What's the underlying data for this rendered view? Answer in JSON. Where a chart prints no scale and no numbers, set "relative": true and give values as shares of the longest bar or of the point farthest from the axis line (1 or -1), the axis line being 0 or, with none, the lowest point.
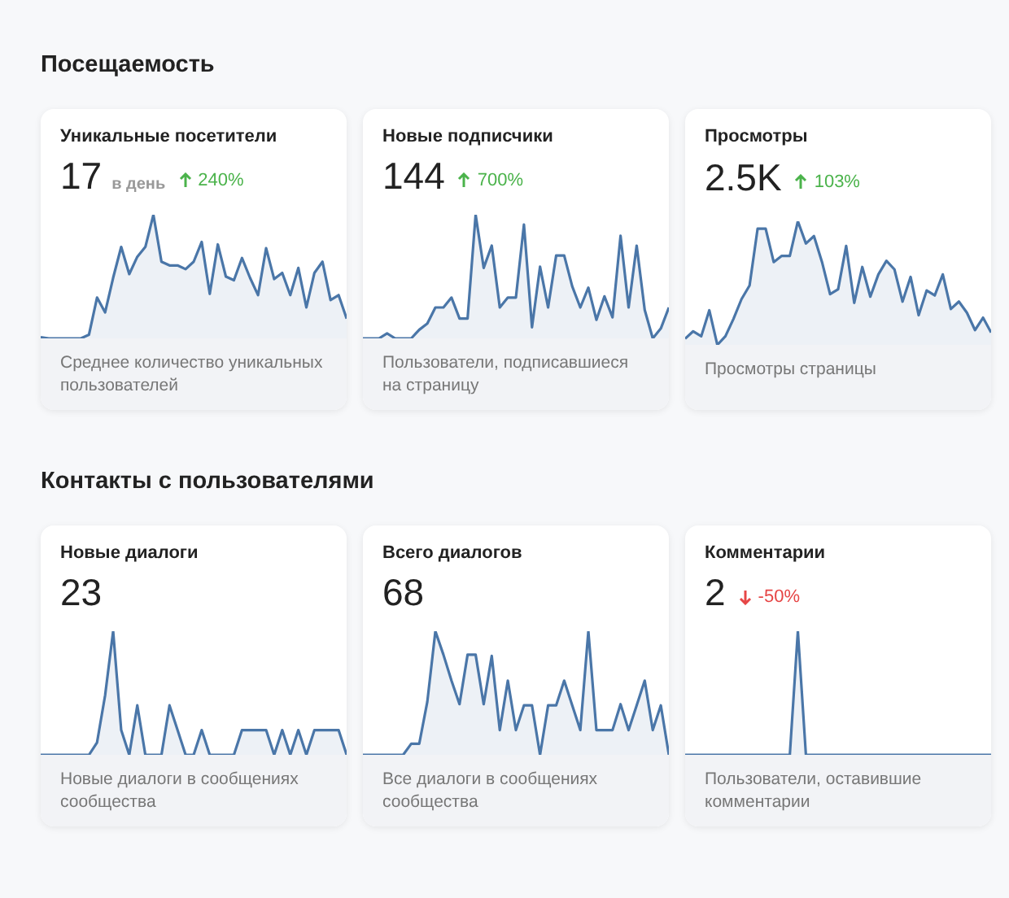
{
  "chart_data": [
    {
      "type": "other",
      "title": "Посещаемость"
    },
    {
      "type": "area",
      "title": "Уникальные посетители",
      "subtitle": "Среднее количество уникальных пользователей",
      "annotations": [
        "17",
        "в день",
        "240%"
      ],
      "relative": true,
      "categories": [
        null,
        null,
        null,
        null,
        null,
        null,
        null,
        null,
        null,
        null,
        null,
        null,
        null,
        null,
        null,
        null,
        null,
        null,
        null,
        null,
        null,
        null,
        null,
        null,
        null,
        null,
        null,
        null,
        null,
        null,
        null,
        null,
        null,
        null,
        null,
        null,
        null,
        null,
        null
      ],
      "series": [
        {
          "color": "#4a76a8",
          "values": [
            0.01,
            0,
            0,
            0,
            0,
            0,
            0.03,
            0.33,
            0.21,
            0.49,
            0.74,
            0.52,
            0.66,
            0.74,
            1,
            0.62,
            0.59,
            0.59,
            0.56,
            0.62,
            0.78,
            0.36,
            0.76,
            0.5,
            0.47,
            0.65,
            0.49,
            0.35,
            0.73,
            0.48,
            0.53,
            0.35,
            0.57,
            0.25,
            0.53,
            0.62,
            0.31,
            0.35,
            0.16
          ]
        }
      ]
    },
    {
      "type": "area",
      "title": "Новые подписчики",
      "subtitle": "Пользователи, подписавшиеся на страницу",
      "annotations": [
        "144",
        "700%"
      ],
      "relative": true,
      "categories": [
        null,
        null,
        null,
        null,
        null,
        null,
        null,
        null,
        null,
        null,
        null,
        null,
        null,
        null,
        null,
        null,
        null,
        null,
        null,
        null,
        null,
        null,
        null,
        null,
        null,
        null,
        null,
        null,
        null,
        null,
        null,
        null,
        null,
        null,
        null,
        null,
        null,
        null,
        null
      ],
      "series": [
        {
          "color": "#4a76a8",
          "values": [
            0,
            0,
            0,
            0.04,
            0,
            0,
            0,
            0.07,
            0.12,
            0.25,
            0.25,
            0.33,
            0.16,
            0.16,
            1,
            0.57,
            0.75,
            0.25,
            0.33,
            0.33,
            0.92,
            0.09,
            0.58,
            0.25,
            0.67,
            0.67,
            0.42,
            0.25,
            0.41,
            0.15,
            0.34,
            0.17,
            0.83,
            0.25,
            0.75,
            0.23,
            0,
            0.08,
            0.25
          ]
        }
      ]
    },
    {
      "type": "area",
      "title": "Просмотры",
      "subtitle": "Просмотры страницы",
      "annotations": [
        "2.5K",
        "103%"
      ],
      "relative": true,
      "categories": [
        null,
        null,
        null,
        null,
        null,
        null,
        null,
        null,
        null,
        null,
        null,
        null,
        null,
        null,
        null,
        null,
        null,
        null,
        null,
        null,
        null,
        null,
        null,
        null,
        null,
        null,
        null,
        null,
        null,
        null,
        null,
        null,
        null,
        null,
        null,
        null,
        null,
        null,
        null
      ],
      "series": [
        {
          "color": "#4a76a8",
          "values": [
            0.05,
            0.11,
            0.07,
            0.28,
            0,
            0.07,
            0.21,
            0.37,
            0.48,
            0.94,
            0.94,
            0.67,
            0.72,
            0.72,
            1,
            0.82,
            0.88,
            0.67,
            0.41,
            0.45,
            0.8,
            0.34,
            0.63,
            0.39,
            0.57,
            0.68,
            0.61,
            0.35,
            0.55,
            0.24,
            0.44,
            0.4,
            0.57,
            0.29,
            0.35,
            0.26,
            0.12,
            0.22,
            0.1
          ]
        }
      ]
    },
    {
      "type": "other",
      "title": "Контакты с пользователями"
    },
    {
      "type": "area",
      "title": "Новые диалоги",
      "subtitle": "Новые диалоги в сообщениях сообщества",
      "annotations": [
        "23"
      ],
      "relative": true,
      "categories": [
        null,
        null,
        null,
        null,
        null,
        null,
        null,
        null,
        null,
        null,
        null,
        null,
        null,
        null,
        null,
        null,
        null,
        null,
        null,
        null,
        null,
        null,
        null,
        null,
        null,
        null,
        null,
        null,
        null,
        null,
        null,
        null,
        null,
        null,
        null,
        null,
        null,
        null,
        null
      ],
      "series": [
        {
          "color": "#4a76a8",
          "values": [
            0,
            0,
            0,
            0,
            0,
            0,
            0,
            0.1,
            0.48,
            1,
            0.2,
            0,
            0.4,
            0,
            0,
            0,
            0.4,
            0.2,
            0,
            0,
            0.2,
            0,
            0,
            0,
            0,
            0.2,
            0.2,
            0.2,
            0.2,
            0,
            0.2,
            0,
            0.2,
            0,
            0.2,
            0.2,
            0.2,
            0.2,
            0
          ]
        }
      ]
    },
    {
      "type": "area",
      "title": "Всего диалогов",
      "subtitle": "Все диалоги в сообщениях сообщества",
      "annotations": [
        "68"
      ],
      "relative": true,
      "categories": [
        null,
        null,
        null,
        null,
        null,
        null,
        null,
        null,
        null,
        null,
        null,
        null,
        null,
        null,
        null,
        null,
        null,
        null,
        null,
        null,
        null,
        null,
        null,
        null,
        null,
        null,
        null,
        null,
        null,
        null,
        null,
        null,
        null,
        null,
        null,
        null,
        null,
        null,
        null
      ],
      "series": [
        {
          "color": "#4a76a8",
          "values": [
            0,
            0,
            0,
            0,
            0,
            0,
            0.09,
            0.09,
            0.43,
            1,
            0.81,
            0.6,
            0.41,
            0.81,
            0.81,
            0.41,
            0.8,
            0.2,
            0.6,
            0.2,
            0.4,
            0.4,
            0,
            0.4,
            0.4,
            0.6,
            0.4,
            0.2,
            1,
            0.2,
            0.2,
            0.2,
            0.41,
            0.2,
            0.4,
            0.6,
            0.2,
            0.4,
            0
          ]
        }
      ]
    },
    {
      "type": "area",
      "title": "Комментарии",
      "subtitle": "Пользователи, оставившие комментарии",
      "annotations": [
        "2",
        "-50%"
      ],
      "relative": true,
      "categories": [
        null,
        null,
        null,
        null,
        null,
        null,
        null,
        null,
        null,
        null,
        null,
        null,
        null,
        null,
        null,
        null,
        null,
        null,
        null,
        null,
        null,
        null,
        null,
        null,
        null,
        null,
        null,
        null,
        null,
        null,
        null,
        null,
        null,
        null,
        null,
        null,
        null,
        null,
        null
      ],
      "series": [
        {
          "color": "#4a76a8",
          "values": [
            0,
            0,
            0,
            0,
            0,
            0,
            0,
            0,
            0,
            0,
            0,
            0,
            0,
            0,
            1,
            0,
            0,
            0,
            0,
            0,
            0,
            0,
            0,
            0,
            0,
            0,
            0,
            0,
            0,
            0,
            0,
            0,
            0,
            0,
            0,
            0,
            0,
            0,
            0
          ]
        }
      ]
    }
  ]
}
